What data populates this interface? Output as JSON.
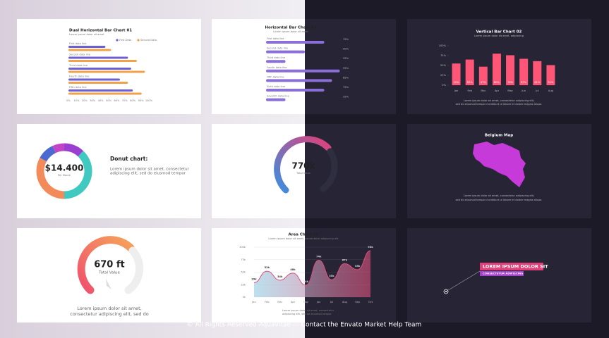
{
  "dual_bar": {
    "type": "bar",
    "title": "Dual Horizontal Bar Chart 01",
    "subtitle": "Lorem ipsum dolor sit amet",
    "categories": [
      "First data line",
      "Second data line",
      "Third data line",
      "Fourth data line",
      "Fifth data line"
    ],
    "series": [
      {
        "name": "First Data",
        "color": "#6b5fd3",
        "values": [
          46,
          74,
          78,
          64,
          80
        ]
      },
      {
        "name": "Second Data",
        "color": "#f2a04a",
        "values": [
          53,
          85,
          95,
          74,
          91
        ]
      }
    ],
    "xlim": [
      0,
      100
    ],
    "xticks": [
      {
        "value": 0,
        "label": "0%"
      },
      {
        "value": 10,
        "label": "10%"
      },
      {
        "value": 20,
        "label": "20%"
      },
      {
        "value": 30,
        "label": "30%"
      },
      {
        "value": 40,
        "label": "40%"
      },
      {
        "value": 50,
        "label": "50%"
      },
      {
        "value": 60,
        "label": "60%"
      },
      {
        "value": 70,
        "label": "70%"
      },
      {
        "value": 80,
        "label": "80%"
      },
      {
        "value": 90,
        "label": "90%"
      },
      {
        "value": 100,
        "label": "100%"
      }
    ]
  },
  "hbar": {
    "type": "bar",
    "title": "Horizontal Bar Chart 03",
    "subtitle": "Lorem ipsum dolor sit amet",
    "categories": [
      "First data line",
      "Second data line",
      "Third data line",
      "Fourth data line",
      "Fifth data line",
      "Sixth data line",
      "Seventh data line"
    ],
    "values": [
      75,
      50,
      25,
      95,
      85,
      75,
      25
    ],
    "value_labels": [
      "75%",
      "50%",
      "25%",
      "95%",
      "85%",
      "75%",
      "25%"
    ],
    "color": "#8a6fd6",
    "xlim": [
      0,
      100
    ]
  },
  "vbar": {
    "type": "bar",
    "title": "Vertical Bar Chart 02",
    "subtitle": "Lorem ipsum dolor sit amet, adipiscing",
    "categories": [
      "Jan",
      "Feb",
      "Mar",
      "Apr",
      "May",
      "Jun",
      "Jul",
      "Aug"
    ],
    "values": [
      55,
      65,
      47,
      80,
      76,
      67,
      61,
      51
    ],
    "value_labels": [
      "55%",
      "65%",
      "47%",
      "80%",
      "76%",
      "67%",
      "61%",
      "51%"
    ],
    "color": "#ff5577",
    "ylim": [
      0,
      100
    ],
    "yticks": [
      {
        "value": 0,
        "label": "0%"
      },
      {
        "value": 25,
        "label": "25%"
      },
      {
        "value": 50,
        "label": "50%"
      },
      {
        "value": 75,
        "label": "75%"
      },
      {
        "value": 100,
        "label": "100%"
      }
    ],
    "body": [
      "Lorem ipsum dolor sit amet, consectetur adipiscing elit,",
      "sed do eiusmod tempor incididunt ut labore et dolore magna aliqua."
    ]
  },
  "donut": {
    "type": "pie",
    "value": "$14.400",
    "caption": "Per Month",
    "title": "Donut chart:",
    "body": [
      "Lorem ipsum dolor sit amet, consectetur",
      "adipiscing elit, sed do eiusmod tempor"
    ],
    "values": [
      12,
      38,
      33,
      10,
      7
    ],
    "colors": [
      "#9b3fd0",
      "#3fc9c0",
      "#f28a5a",
      "#4a6ad0",
      "#c245c8"
    ]
  },
  "gauge_dark": {
    "value": "770k",
    "caption": "Total Value"
  },
  "map": {
    "title": "Belgium Map",
    "body": [
      "Lorem ipsum dolor sit amet, consectetur adipiscing elit,",
      "sed do eiusmod tempor incididunt ut labore et dolore magna aliqua."
    ]
  },
  "gauge_light": {
    "value": "670 ft",
    "caption": "Total Value",
    "body": [
      "Lorem ipsum dolor sit amet,",
      "consectetur adipiscing elit, sed do"
    ]
  },
  "area": {
    "type": "area",
    "title": "Area Chart 02",
    "subtitle": "Lorem ipsum dolor sit amet, consectetur adipiscing elit",
    "categories": [
      "Jan",
      "Feb",
      "Mar",
      "Apr",
      "May",
      "Jun",
      "Jul",
      "Aug",
      "Sep",
      "Oct"
    ],
    "values": [
      29,
      52,
      34,
      48,
      24,
      74,
      35,
      67,
      55,
      93
    ],
    "value_labels": [
      "29k",
      "52k",
      "34k",
      "48k",
      "24k",
      "74k",
      "35k",
      "67k",
      "55k",
      "93k"
    ],
    "color": "#e0507a",
    "ylim": [
      0,
      100
    ],
    "grid": true,
    "yticks": [
      {
        "value": 0,
        "label": "0k"
      },
      {
        "value": 25,
        "label": "25k"
      },
      {
        "value": 50,
        "label": "50k"
      },
      {
        "value": 75,
        "label": "75k"
      },
      {
        "value": 100,
        "label": "100k"
      }
    ],
    "body": [
      "Lorem ipsum dolor sit amet, consectetur",
      "adipiscing elit, sed do eiusmod tempor"
    ]
  },
  "callout": {
    "title": "LOREM IPSUM DOLOR SIT",
    "subtitle": "CONSECTETUR ADIPISCING"
  },
  "footer": "© All Rights Reserved Aquavitae — Contact the Envato Market Help Team"
}
